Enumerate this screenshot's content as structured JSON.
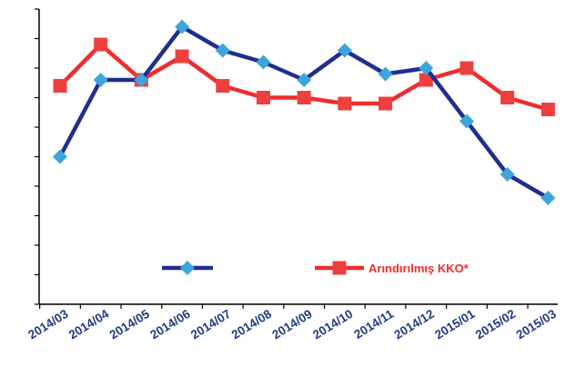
{
  "chart_data": {
    "type": "line",
    "title": "",
    "xlabel": "",
    "ylabel": "",
    "grid": false,
    "legend_position": "bottom",
    "ylim": [
      0,
      100
    ],
    "categories": [
      "2014/03",
      "2014/04",
      "2014/05",
      "2014/06",
      "2014/07",
      "2014/08",
      "2014/09",
      "2014/10",
      "2014/11",
      "2014/12",
      "2015/01",
      "2015/02",
      "2015/03"
    ],
    "series": [
      {
        "name": "",
        "color": "#1e2f8e",
        "marker": "diamond",
        "marker_color": "#3da5dc",
        "values": [
          50,
          76,
          76,
          94,
          86,
          82,
          76,
          86,
          78,
          80,
          62,
          44,
          36
        ]
      },
      {
        "name": "Arındırılmış KKO*",
        "color": "#ee2d2e",
        "marker": "square",
        "marker_color": "#ee3f3f",
        "values": [
          74,
          88,
          76,
          84,
          74,
          70,
          70,
          68,
          68,
          76,
          80,
          70,
          66
        ]
      }
    ]
  }
}
